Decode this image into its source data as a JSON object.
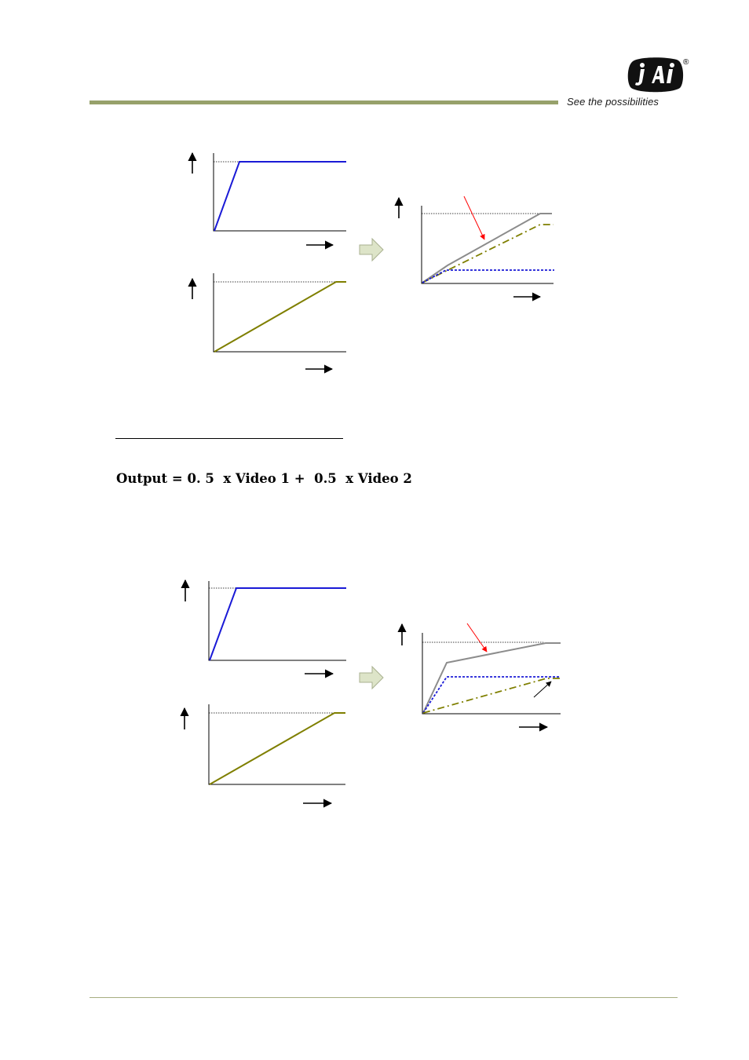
{
  "header": {
    "tagline": "See the possibilities",
    "logo_text": "JAI",
    "registered_mark": "®"
  },
  "formula": {
    "text": "Output = 0. 5  x Video 1 +  0.5  x Video 2"
  },
  "colors": {
    "video1": "#1a1ad6",
    "video2": "#7f7f00",
    "output": "#8c8c8c",
    "pointer_red": "#ff0000",
    "rule": "#97a16b",
    "arrow_fill": "#dde4c8"
  },
  "diagrams": [
    {
      "name": "figure-1",
      "video1": {
        "type": "line",
        "x": [
          0,
          0.2,
          1
        ],
        "y": [
          0,
          1,
          1
        ]
      },
      "video2": {
        "type": "line",
        "x": [
          0,
          0.93,
          1
        ],
        "y": [
          0,
          1,
          1
        ]
      },
      "output_blend": {
        "type": "line",
        "x": [
          0,
          0.2,
          0.93,
          1
        ],
        "y": [
          0,
          0.25,
          1,
          1
        ]
      }
    },
    {
      "name": "figure-2",
      "video1": {
        "type": "line",
        "x": [
          0,
          0.2,
          1
        ],
        "y": [
          0,
          1,
          1
        ]
      },
      "video2": {
        "type": "line",
        "x": [
          0,
          0.93,
          1
        ],
        "y": [
          0,
          1,
          1
        ]
      },
      "output_blend": {
        "type": "line",
        "x": [
          0,
          0.17,
          0.9,
          1
        ],
        "y": [
          0,
          0.73,
          1,
          1
        ]
      }
    }
  ]
}
